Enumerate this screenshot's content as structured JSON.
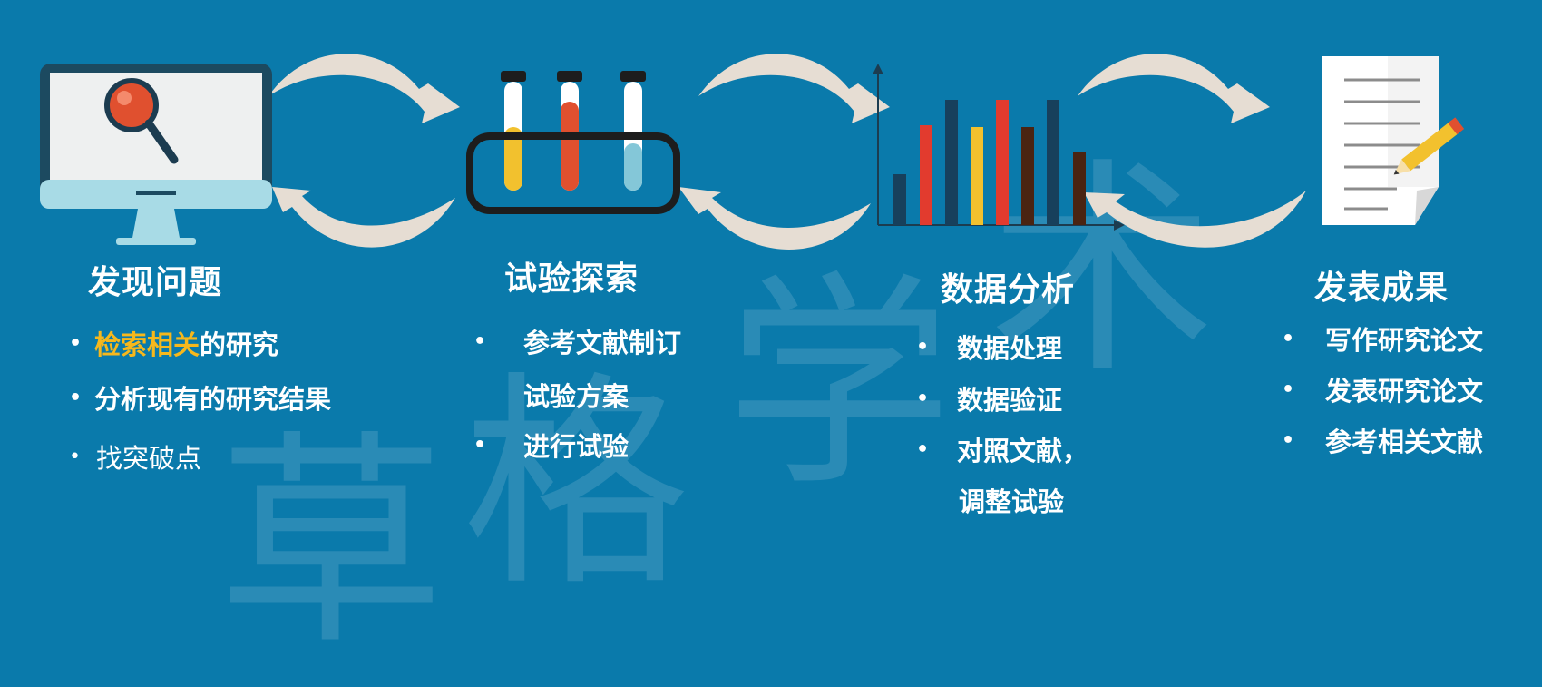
{
  "watermark": {
    "chars": [
      "草",
      "格",
      "学",
      "术"
    ]
  },
  "colors": {
    "background": "#0a7aab",
    "arrow_fill": "#e6ddd3",
    "highlight": "#f6b81c",
    "red": "#e23b2e",
    "yellow": "#f2c12e",
    "navy": "#17405c",
    "brown": "#4a2412"
  },
  "stages": [
    {
      "icon": "monitor-search-icon",
      "title": "发现问题",
      "items": [
        {
          "highlight": "检索相关",
          "text": "的研究"
        },
        {
          "highlight": "",
          "text": "分析现有的研究结果"
        },
        {
          "highlight": "",
          "text": "找突破点"
        }
      ]
    },
    {
      "icon": "test-tubes-icon",
      "title": "试验探索",
      "items": [
        {
          "lines": [
            "参考文献制订",
            "试验方案"
          ]
        },
        {
          "lines": [
            "进行试验"
          ]
        }
      ]
    },
    {
      "icon": "bar-chart-icon",
      "title": "数据分析",
      "items": [
        {
          "lines": [
            "数据处理"
          ]
        },
        {
          "lines": [
            "数据验证"
          ]
        },
        {
          "lines": [
            "对照文献，",
            "调整试验"
          ]
        }
      ]
    },
    {
      "icon": "document-pencil-icon",
      "title": "发表成果",
      "items": [
        {
          "lines": [
            "写作研究论文"
          ]
        },
        {
          "lines": [
            "发表研究论文"
          ]
        },
        {
          "lines": [
            "参考相关文献"
          ]
        }
      ]
    }
  ]
}
